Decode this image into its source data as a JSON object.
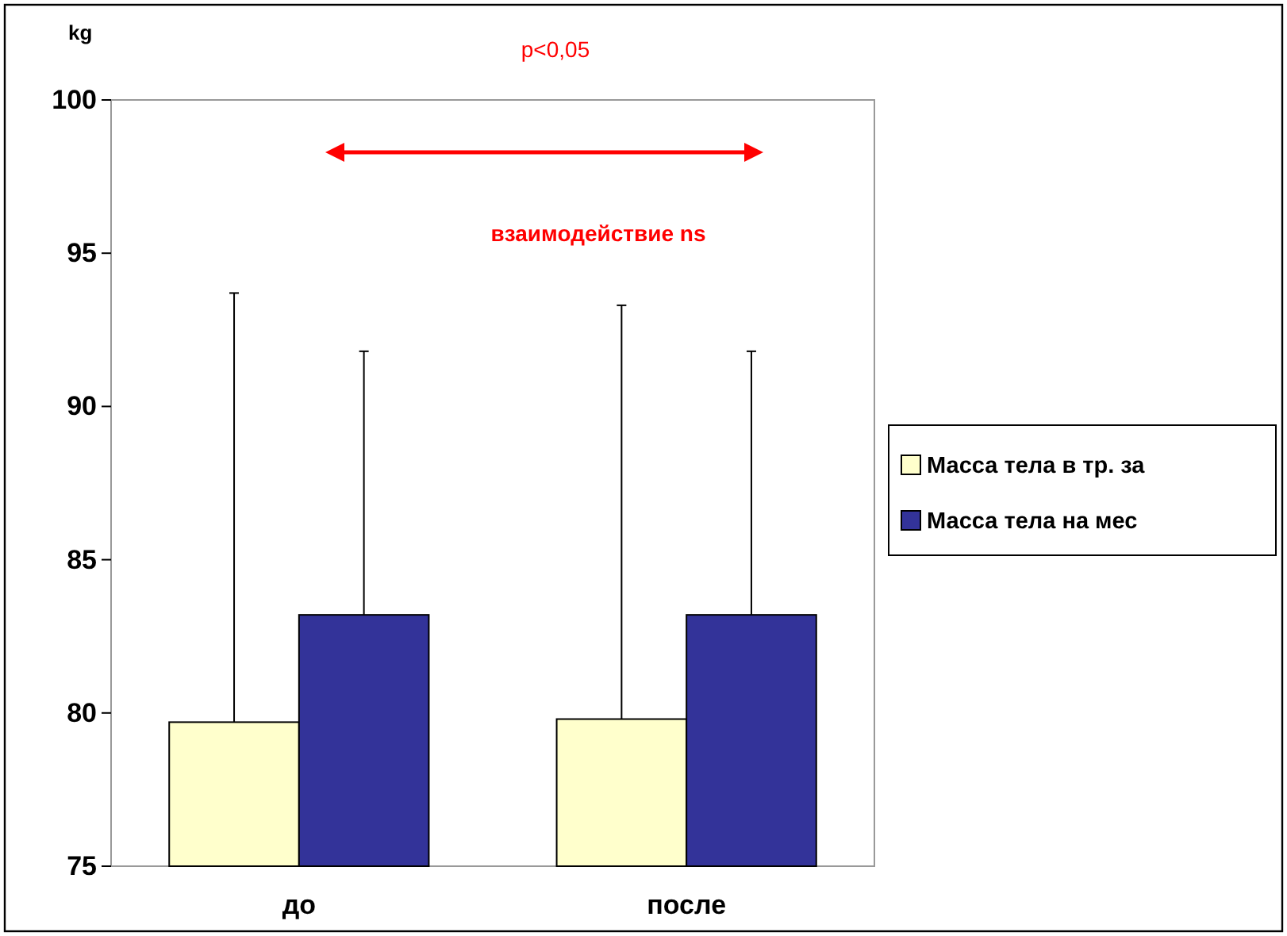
{
  "chart_data": {
    "type": "bar",
    "ylabel": "kg",
    "categories": [
      "до",
      "после"
    ],
    "series": [
      {
        "name": "Масса тела в тр. за",
        "color": "#ffffcc",
        "values": [
          79.7,
          79.8
        ],
        "errors": [
          [
            79.7,
            93.7
          ],
          [
            79.8,
            93.3
          ]
        ]
      },
      {
        "name": "Масса тела на мес",
        "color": "#333399",
        "values": [
          83.2,
          83.2
        ],
        "errors": [
          [
            83.2,
            91.8
          ],
          [
            83.2,
            91.8
          ]
        ]
      }
    ],
    "ylim": [
      75,
      100
    ],
    "yticks": [
      75,
      80,
      85,
      90,
      95,
      100
    ],
    "grid": false,
    "legend": "right",
    "annotations": [
      "p<0,05",
      "взаимодействие ns"
    ]
  }
}
